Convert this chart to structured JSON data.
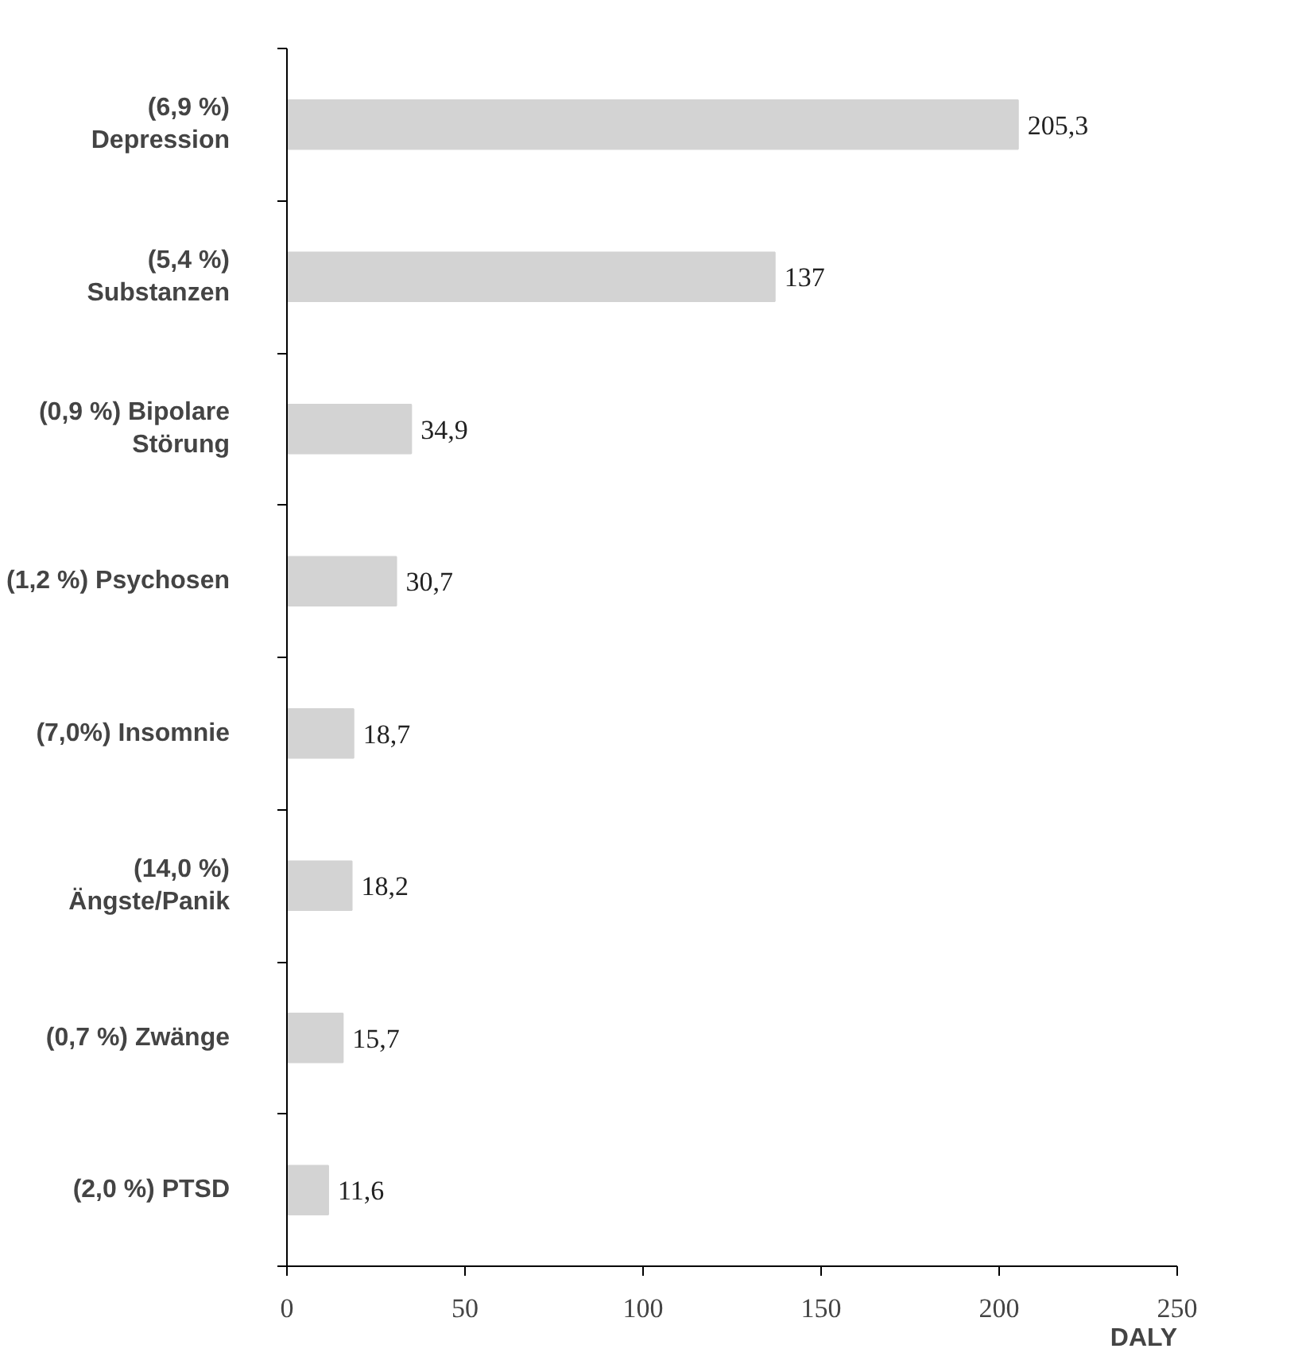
{
  "chart_data": {
    "type": "bar",
    "orientation": "horizontal",
    "xlabel": "DALY",
    "categories": [
      "(6,9 %)\nDepression",
      "(5,4 %)\nSubstanzen",
      "(0,9 %) Bipolare\nStörung",
      "(1,2 %) Psychosen",
      "(7,0%) Insomnie",
      "(14,0 %)\nÄngste/Panik",
      "(0,7 %) Zwänge",
      "(2,0 %) PTSD"
    ],
    "values": [
      205.3,
      137,
      34.9,
      30.7,
      18.7,
      18.2,
      15.7,
      11.6
    ],
    "value_labels": [
      "205,3",
      "137",
      "34,9",
      "30,7",
      "18,7",
      "18,2",
      "15,7",
      "11,6"
    ],
    "color": "#d3d3d3",
    "xlim": [
      0,
      250
    ],
    "xticks": [
      0,
      50,
      100,
      150,
      200,
      250
    ],
    "grid": false
  }
}
